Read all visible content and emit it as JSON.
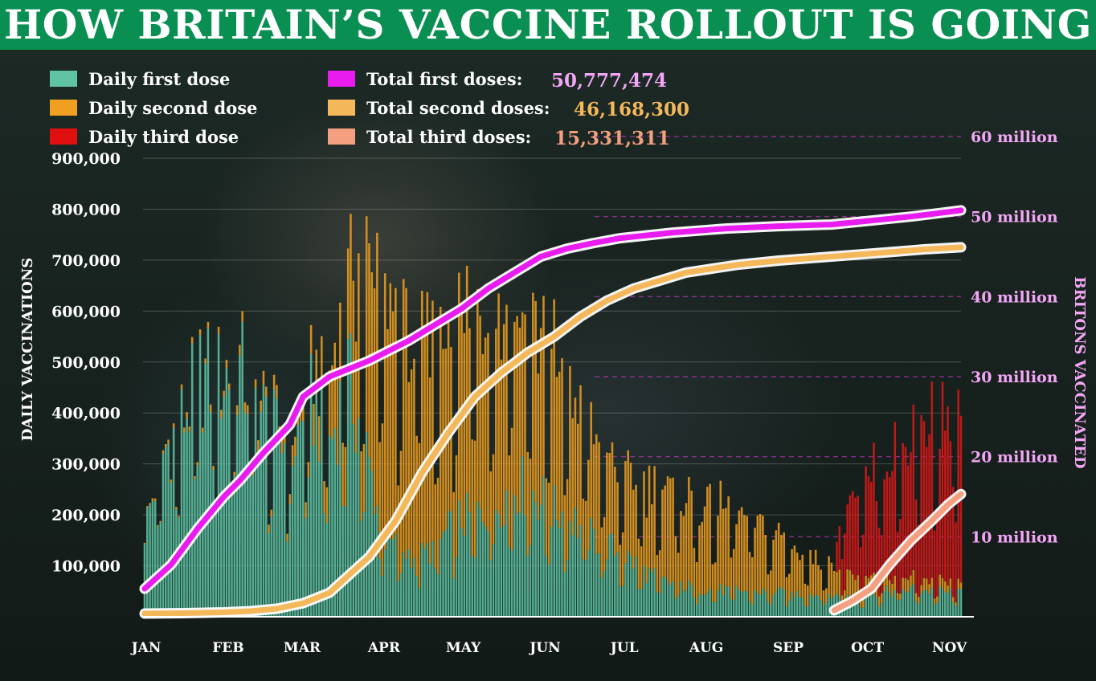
{
  "page": {
    "title": "HOW BRITAIN’S VACCINE ROLLOUT IS GOING"
  },
  "colors": {
    "banner": "#0a8f52",
    "first_daily": "#5fc4a6",
    "second_daily": "#f0a020",
    "third_daily": "#d01818",
    "total_first": "#e91cf0",
    "total_second": "#f4b85a",
    "total_third": "#f4a080",
    "right_axis": "#f3a6f5"
  },
  "legend": {
    "daily": [
      {
        "label": "Daily first dose",
        "color": "#5fc4a6"
      },
      {
        "label": "Daily second dose",
        "color": "#f0a020"
      },
      {
        "label": "Daily third dose",
        "color": "#e01010"
      }
    ],
    "totals": [
      {
        "label": "Total first doses:",
        "value": "50,777,474",
        "color": "#e91cf0",
        "value_color": "#f3a6f5"
      },
      {
        "label": "Total second doses:",
        "value": "46,168,300",
        "color": "#f4b85a",
        "value_color": "#f4b85a"
      },
      {
        "label": "Total third doses:",
        "value": "15,331,311",
        "color": "#f4a080",
        "value_color": "#f4a080"
      }
    ]
  },
  "chart_data": {
    "type": "bar",
    "title": "HOW BRITAIN’S VACCINE ROLLOUT IS GOING",
    "ylabel": "DAILY VACCINATIONS",
    "y2label": "BRITONS VACCINATED",
    "ylim": [
      0,
      900000
    ],
    "y2lim": [
      0,
      60000000
    ],
    "yticks": [
      "100,000",
      "200,000",
      "300,000",
      "400,000",
      "500,000",
      "600,000",
      "700,000",
      "800,000",
      "900,000"
    ],
    "y2ticks": [
      "10 million",
      "20 million",
      "30 million",
      "40 million",
      "50 million",
      "60 million"
    ],
    "x_labels": [
      "JAN",
      "FEB",
      "MAR",
      "APR",
      "MAY",
      "JUN",
      "JUL",
      "AUG",
      "SEP",
      "OCT",
      "NOV"
    ],
    "x_label_days": [
      0,
      31,
      59,
      90,
      120,
      151,
      181,
      212,
      243,
      273,
      304
    ],
    "day_range": [
      0,
      309
    ],
    "grid": "horizontal",
    "legend_position": "top-left",
    "bars": {
      "stacked": true,
      "note": "daily doses (approximate, read from chart)",
      "first_dose_anchors": [
        [
          0,
          170000
        ],
        [
          7,
          320000
        ],
        [
          14,
          380000
        ],
        [
          21,
          470000
        ],
        [
          28,
          460000
        ],
        [
          35,
          490000
        ],
        [
          42,
          420000
        ],
        [
          49,
          360000
        ],
        [
          56,
          330000
        ],
        [
          63,
          420000
        ],
        [
          70,
          340000
        ],
        [
          77,
          470000
        ],
        [
          84,
          320000
        ],
        [
          91,
          150000
        ],
        [
          98,
          130000
        ],
        [
          105,
          120000
        ],
        [
          112,
          150000
        ],
        [
          119,
          190000
        ],
        [
          126,
          200000
        ],
        [
          133,
          220000
        ],
        [
          140,
          260000
        ],
        [
          147,
          250000
        ],
        [
          154,
          210000
        ],
        [
          161,
          200000
        ],
        [
          168,
          160000
        ],
        [
          175,
          140000
        ],
        [
          182,
          120000
        ],
        [
          189,
          90000
        ],
        [
          196,
          70000
        ],
        [
          210,
          55000
        ],
        [
          230,
          50000
        ],
        [
          250,
          45000
        ],
        [
          270,
          40000
        ],
        [
          290,
          55000
        ],
        [
          309,
          45000
        ]
      ],
      "second_dose_anchors": [
        [
          0,
          3000
        ],
        [
          30,
          15000
        ],
        [
          50,
          25000
        ],
        [
          60,
          40000
        ],
        [
          70,
          120000
        ],
        [
          80,
          250000
        ],
        [
          90,
          480000
        ],
        [
          100,
          430000
        ],
        [
          110,
          390000
        ],
        [
          120,
          390000
        ],
        [
          130,
          410000
        ],
        [
          140,
          380000
        ],
        [
          150,
          340000
        ],
        [
          160,
          260000
        ],
        [
          170,
          200000
        ],
        [
          180,
          160000
        ],
        [
          190,
          170000
        ],
        [
          200,
          180000
        ],
        [
          210,
          170000
        ],
        [
          220,
          160000
        ],
        [
          230,
          140000
        ],
        [
          240,
          110000
        ],
        [
          250,
          80000
        ],
        [
          260,
          60000
        ],
        [
          270,
          40000
        ],
        [
          285,
          25000
        ],
        [
          309,
          15000
        ]
      ],
      "third_dose_anchors": [
        [
          0,
          0
        ],
        [
          261,
          0
        ],
        [
          264,
          160000
        ],
        [
          275,
          200000
        ],
        [
          285,
          250000
        ],
        [
          295,
          310000
        ],
        [
          305,
          330000
        ],
        [
          309,
          300000
        ]
      ]
    },
    "series": [
      {
        "name": "Total first doses",
        "axis": "right",
        "points": [
          [
            0,
            3500000
          ],
          [
            10,
            6500000
          ],
          [
            20,
            11000000
          ],
          [
            30,
            15000000
          ],
          [
            36,
            17000000
          ],
          [
            45,
            20500000
          ],
          [
            55,
            24000000
          ],
          [
            60,
            27500000
          ],
          [
            70,
            30000000
          ],
          [
            85,
            32000000
          ],
          [
            100,
            34500000
          ],
          [
            110,
            36500000
          ],
          [
            120,
            38500000
          ],
          [
            130,
            41000000
          ],
          [
            140,
            43000000
          ],
          [
            150,
            45000000
          ],
          [
            160,
            46000000
          ],
          [
            170,
            46700000
          ],
          [
            180,
            47300000
          ],
          [
            200,
            48000000
          ],
          [
            220,
            48500000
          ],
          [
            240,
            48800000
          ],
          [
            260,
            49000000
          ],
          [
            275,
            49500000
          ],
          [
            290,
            50000000
          ],
          [
            300,
            50400000
          ],
          [
            309,
            50777474
          ]
        ]
      },
      {
        "name": "Total second doses",
        "axis": "right",
        "points": [
          [
            0,
            400000
          ],
          [
            15,
            450000
          ],
          [
            30,
            550000
          ],
          [
            40,
            700000
          ],
          [
            50,
            1000000
          ],
          [
            60,
            1700000
          ],
          [
            70,
            3000000
          ],
          [
            75,
            4500000
          ],
          [
            85,
            7500000
          ],
          [
            95,
            12000000
          ],
          [
            105,
            18000000
          ],
          [
            115,
            23000000
          ],
          [
            125,
            27500000
          ],
          [
            135,
            30500000
          ],
          [
            145,
            33000000
          ],
          [
            155,
            35000000
          ],
          [
            165,
            37500000
          ],
          [
            175,
            39500000
          ],
          [
            185,
            41000000
          ],
          [
            195,
            42000000
          ],
          [
            205,
            43000000
          ],
          [
            215,
            43500000
          ],
          [
            225,
            44000000
          ],
          [
            240,
            44500000
          ],
          [
            260,
            45000000
          ],
          [
            280,
            45500000
          ],
          [
            295,
            45900000
          ],
          [
            309,
            46168300
          ]
        ]
      },
      {
        "name": "Total third doses",
        "axis": "right",
        "points": [
          [
            261,
            800000
          ],
          [
            268,
            2000000
          ],
          [
            275,
            3500000
          ],
          [
            282,
            6500000
          ],
          [
            290,
            9500000
          ],
          [
            298,
            12000000
          ],
          [
            304,
            14000000
          ],
          [
            309,
            15331311
          ]
        ]
      }
    ]
  }
}
